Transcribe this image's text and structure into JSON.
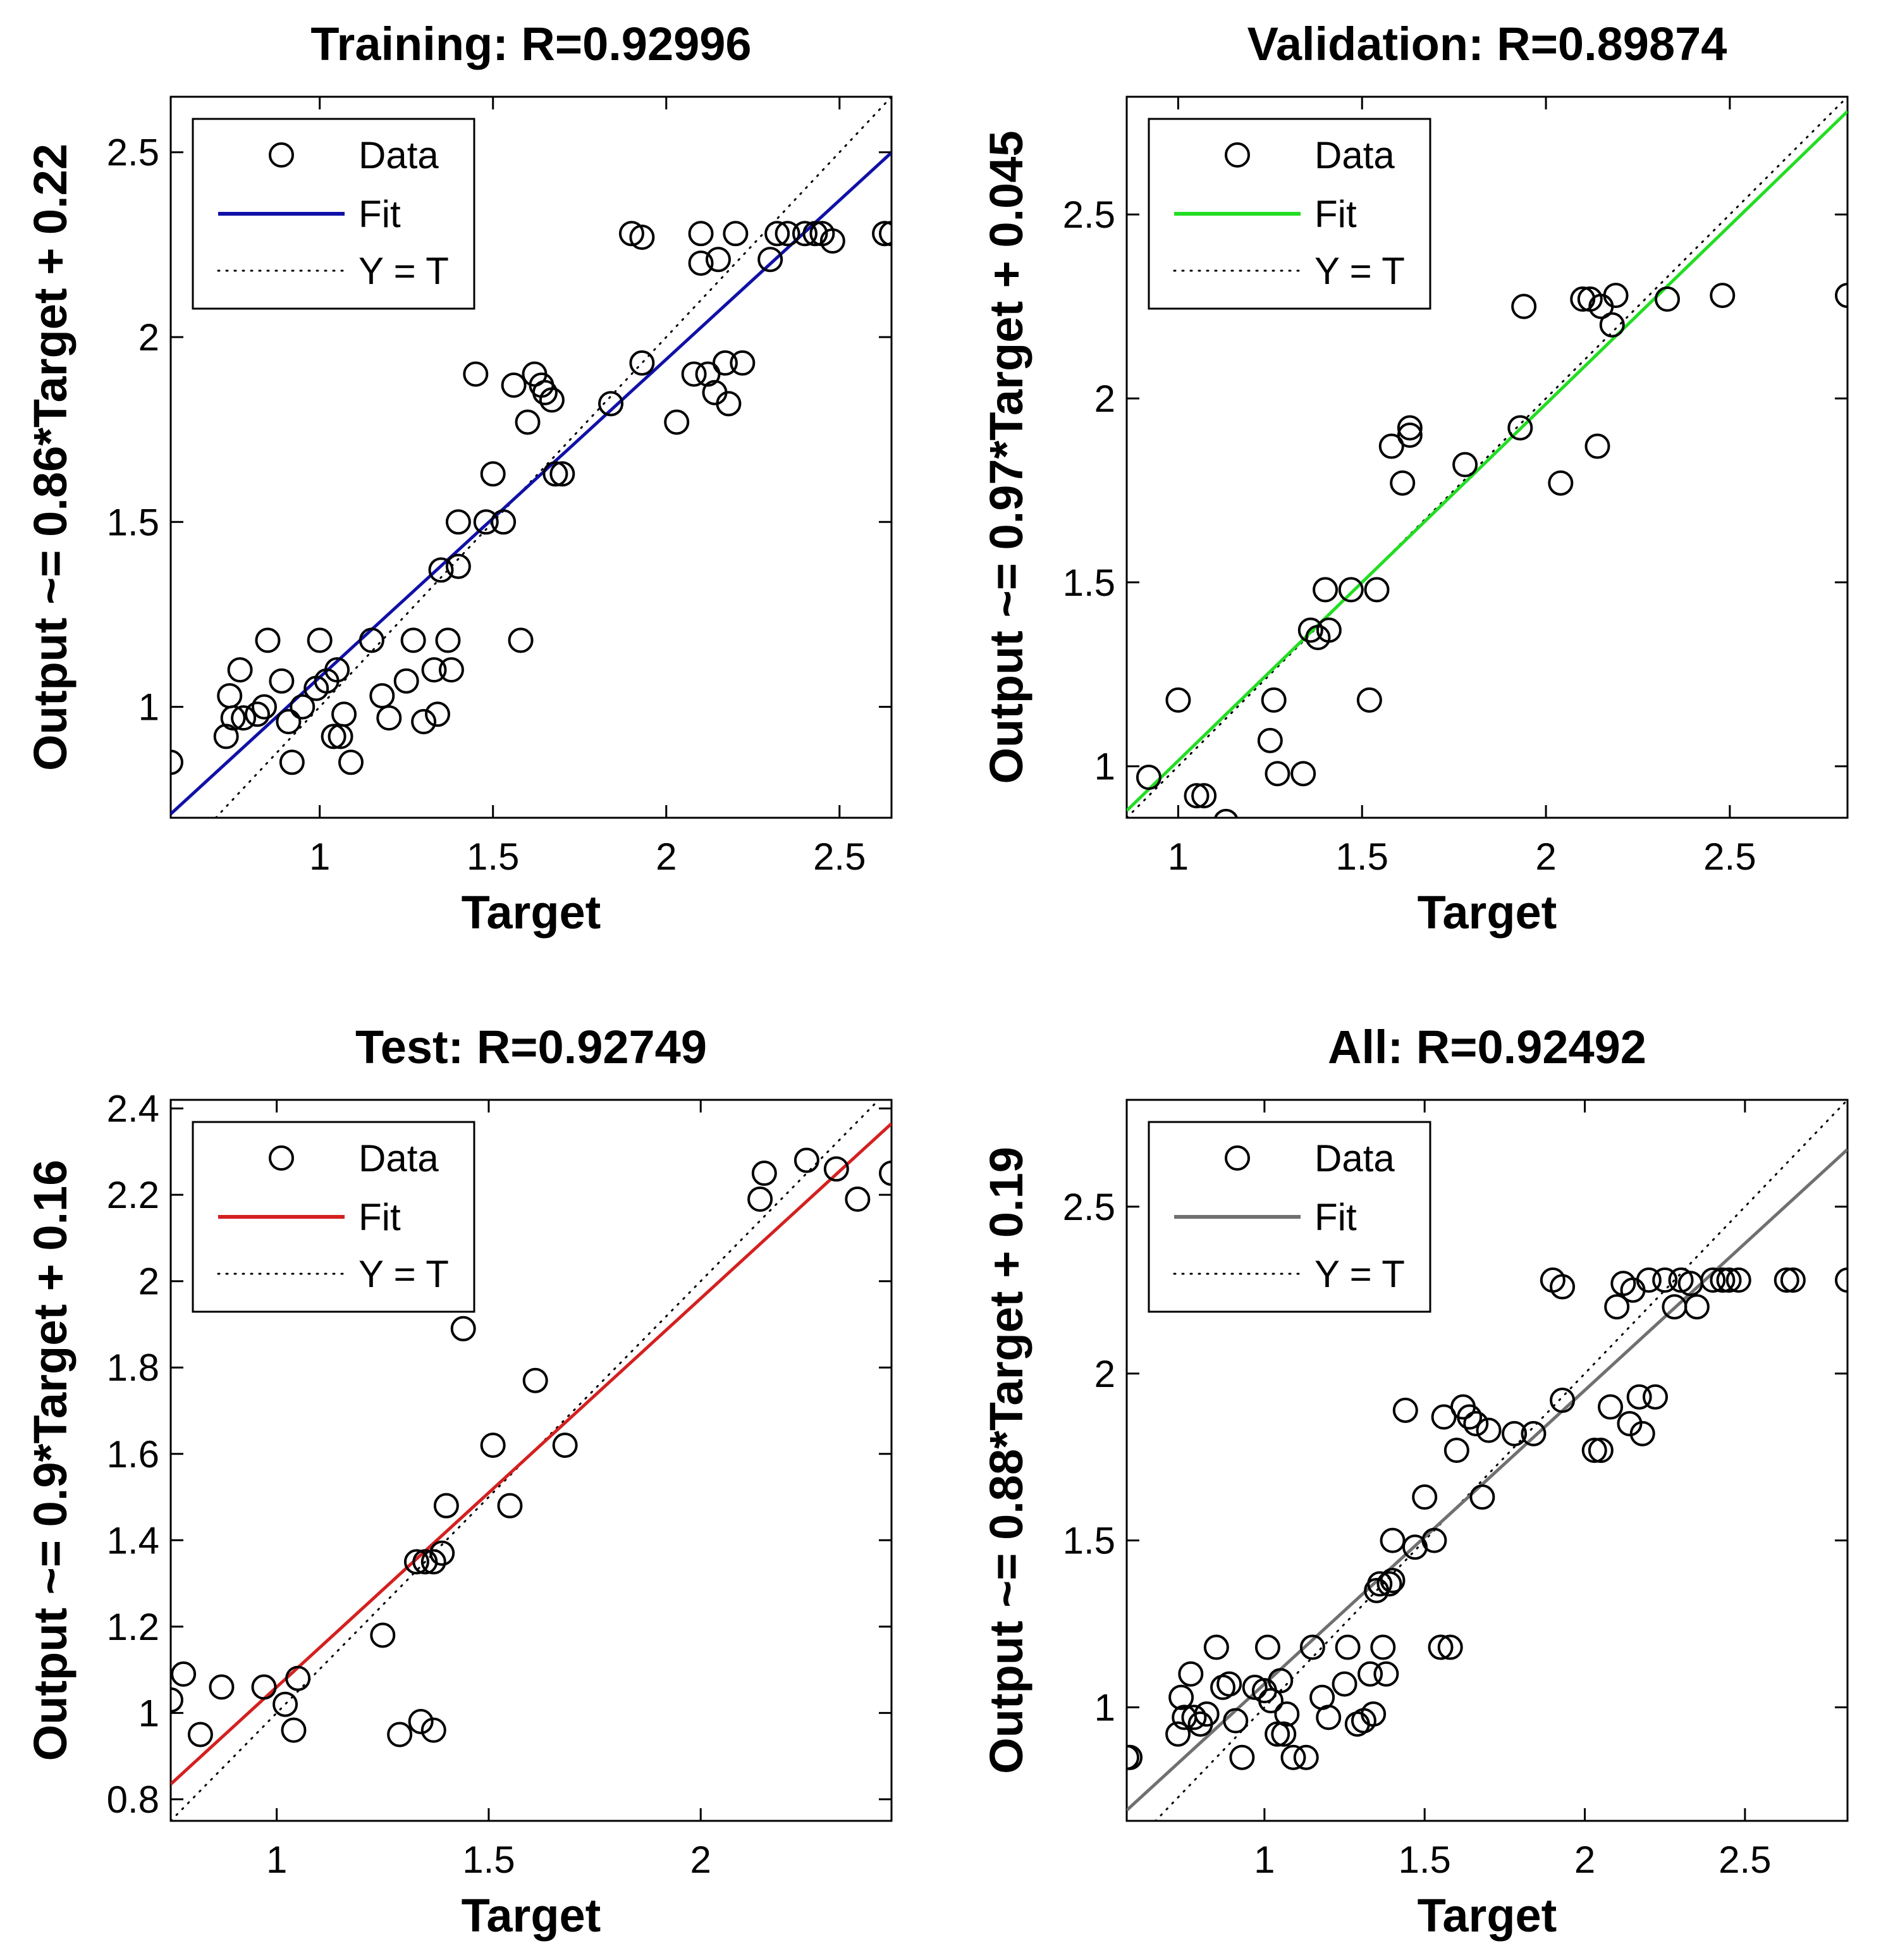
{
  "chart_data": [
    {
      "type": "scatter",
      "panel": "training",
      "title": "Training: R=0.92996",
      "xlabel": "Target",
      "ylabel": "Output ~= 0.86*Target + 0.22",
      "xlim": [
        0.57,
        2.65
      ],
      "ylim": [
        0.7,
        2.65
      ],
      "xticks": [
        1,
        1.5,
        2,
        2.5
      ],
      "xtick_labels": [
        "1",
        "1.5",
        "2",
        "2.5"
      ],
      "yticks": [
        1,
        1.5,
        2,
        2.5
      ],
      "ytick_labels": [
        "1",
        "1.5",
        "2",
        "2.5"
      ],
      "fit": {
        "slope": 0.86,
        "intercept": 0.22,
        "color": "#1010a8"
      },
      "legend": [
        "Data",
        "Fit",
        "Y = T"
      ],
      "legend_position": "top-left",
      "points": [
        [
          0.57,
          0.85
        ],
        [
          0.73,
          0.92
        ],
        [
          0.74,
          1.03
        ],
        [
          0.75,
          0.97
        ],
        [
          0.77,
          1.1
        ],
        [
          0.78,
          0.97
        ],
        [
          0.82,
          0.98
        ],
        [
          0.84,
          1.0
        ],
        [
          0.85,
          1.18
        ],
        [
          0.89,
          1.07
        ],
        [
          0.91,
          0.96
        ],
        [
          0.92,
          0.85
        ],
        [
          0.95,
          1.0
        ],
        [
          0.99,
          1.05
        ],
        [
          1.0,
          1.18
        ],
        [
          1.02,
          1.07
        ],
        [
          1.04,
          0.92
        ],
        [
          1.05,
          1.1
        ],
        [
          1.06,
          0.92
        ],
        [
          1.07,
          0.98
        ],
        [
          1.09,
          0.85
        ],
        [
          1.15,
          1.18
        ],
        [
          1.18,
          1.03
        ],
        [
          1.2,
          0.97
        ],
        [
          1.25,
          1.07
        ],
        [
          1.27,
          1.18
        ],
        [
          1.3,
          0.96
        ],
        [
          1.33,
          1.1
        ],
        [
          1.34,
          0.98
        ],
        [
          1.35,
          1.37
        ],
        [
          1.37,
          1.18
        ],
        [
          1.38,
          1.1
        ],
        [
          1.4,
          1.38
        ],
        [
          1.4,
          1.5
        ],
        [
          1.45,
          1.9
        ],
        [
          1.48,
          1.5
        ],
        [
          1.5,
          1.63
        ],
        [
          1.53,
          1.5
        ],
        [
          1.56,
          1.87
        ],
        [
          1.58,
          1.18
        ],
        [
          1.6,
          1.77
        ],
        [
          1.62,
          1.9
        ],
        [
          1.64,
          1.87
        ],
        [
          1.65,
          1.85
        ],
        [
          1.67,
          1.83
        ],
        [
          1.68,
          1.63
        ],
        [
          1.7,
          1.63
        ],
        [
          1.84,
          1.82
        ],
        [
          1.9,
          2.28
        ],
        [
          1.93,
          2.27
        ],
        [
          1.93,
          1.93
        ],
        [
          2.03,
          1.77
        ],
        [
          2.08,
          1.9
        ],
        [
          2.1,
          2.2
        ],
        [
          2.1,
          2.28
        ],
        [
          2.12,
          1.9
        ],
        [
          2.14,
          1.85
        ],
        [
          2.15,
          2.21
        ],
        [
          2.17,
          1.93
        ],
        [
          2.18,
          1.82
        ],
        [
          2.2,
          2.28
        ],
        [
          2.22,
          1.93
        ],
        [
          2.3,
          2.21
        ],
        [
          2.32,
          2.28
        ],
        [
          2.35,
          2.28
        ],
        [
          2.4,
          2.28
        ],
        [
          2.43,
          2.28
        ],
        [
          2.45,
          2.28
        ],
        [
          2.48,
          2.26
        ],
        [
          2.63,
          2.28
        ],
        [
          2.65,
          2.28
        ]
      ]
    },
    {
      "type": "scatter",
      "panel": "validation",
      "title": "Validation: R=0.89874",
      "xlabel": "Target",
      "ylabel": "Output ~= 0.97*Target + 0.045",
      "xlim": [
        0.86,
        2.82
      ],
      "ylim": [
        0.86,
        2.82
      ],
      "xticks": [
        1,
        1.5,
        2,
        2.5
      ],
      "xtick_labels": [
        "1",
        "1.5",
        "2",
        "2.5"
      ],
      "yticks": [
        1,
        1.5,
        2,
        2.5
      ],
      "ytick_labels": [
        "1",
        "1.5",
        "2",
        "2.5"
      ],
      "fit": {
        "slope": 0.97,
        "intercept": 0.045,
        "color": "#22dd22"
      },
      "legend": [
        "Data",
        "Fit",
        "Y = T"
      ],
      "legend_position": "top-left",
      "points": [
        [
          0.92,
          0.97
        ],
        [
          1.0,
          1.18
        ],
        [
          1.05,
          0.92
        ],
        [
          1.07,
          0.92
        ],
        [
          1.13,
          0.85
        ],
        [
          1.25,
          1.07
        ],
        [
          1.26,
          1.18
        ],
        [
          1.27,
          0.98
        ],
        [
          1.34,
          0.98
        ],
        [
          1.36,
          1.37
        ],
        [
          1.38,
          1.35
        ],
        [
          1.4,
          1.48
        ],
        [
          1.41,
          1.37
        ],
        [
          1.47,
          1.48
        ],
        [
          1.52,
          1.18
        ],
        [
          1.54,
          1.48
        ],
        [
          1.58,
          1.87
        ],
        [
          1.61,
          1.77
        ],
        [
          1.63,
          1.9
        ],
        [
          1.63,
          1.92
        ],
        [
          1.78,
          1.82
        ],
        [
          1.93,
          1.92
        ],
        [
          1.94,
          2.25
        ],
        [
          2.04,
          1.77
        ],
        [
          2.1,
          2.27
        ],
        [
          2.12,
          2.27
        ],
        [
          2.14,
          1.87
        ],
        [
          2.15,
          2.25
        ],
        [
          2.18,
          2.2
        ],
        [
          2.19,
          2.28
        ],
        [
          2.33,
          2.27
        ],
        [
          2.48,
          2.28
        ],
        [
          2.82,
          2.28
        ]
      ]
    },
    {
      "type": "scatter",
      "panel": "test",
      "title": "Test: R=0.92749",
      "xlabel": "Target",
      "ylabel": "Output ~= 0.9*Target + 0.16",
      "xlim": [
        0.75,
        2.45
      ],
      "ylim": [
        0.75,
        2.42
      ],
      "xticks": [
        1,
        1.5,
        2
      ],
      "xtick_labels": [
        "1",
        "1.5",
        "2"
      ],
      "yticks": [
        0.8,
        1.0,
        1.2,
        1.4,
        1.6,
        1.8,
        2.0,
        2.2,
        2.4
      ],
      "ytick_labels": [
        "0.8",
        "1",
        "1.2",
        "1.4",
        "1.6",
        "1.8",
        "2",
        "2.2",
        "2.4"
      ],
      "fit": {
        "slope": 0.9,
        "intercept": 0.16,
        "color": "#d42020"
      },
      "legend": [
        "Data",
        "Fit",
        "Y = T"
      ],
      "legend_position": "top-left",
      "points": [
        [
          0.75,
          1.03
        ],
        [
          0.78,
          1.09
        ],
        [
          0.82,
          0.95
        ],
        [
          0.87,
          1.06
        ],
        [
          0.97,
          1.06
        ],
        [
          1.02,
          1.02
        ],
        [
          1.04,
          0.96
        ],
        [
          1.05,
          1.08
        ],
        [
          1.25,
          1.18
        ],
        [
          1.29,
          0.95
        ],
        [
          1.33,
          1.35
        ],
        [
          1.34,
          0.98
        ],
        [
          1.35,
          1.35
        ],
        [
          1.37,
          0.96
        ],
        [
          1.37,
          1.35
        ],
        [
          1.39,
          1.37
        ],
        [
          1.4,
          1.48
        ],
        [
          1.44,
          1.89
        ],
        [
          1.51,
          1.62
        ],
        [
          1.55,
          1.48
        ],
        [
          1.61,
          1.77
        ],
        [
          1.68,
          1.62
        ],
        [
          2.14,
          2.19
        ],
        [
          2.15,
          2.25
        ],
        [
          2.25,
          2.28
        ],
        [
          2.32,
          2.26
        ],
        [
          2.37,
          2.19
        ],
        [
          2.45,
          2.25
        ]
      ]
    },
    {
      "type": "scatter",
      "panel": "all",
      "title": "All: R=0.92492",
      "xlabel": "Target",
      "ylabel": "Output ~= 0.88*Target + 0.19",
      "xlim": [
        0.57,
        2.82
      ],
      "ylim": [
        0.66,
        2.82
      ],
      "xticks": [
        1,
        1.5,
        2,
        2.5
      ],
      "xtick_labels": [
        "1",
        "1.5",
        "2",
        "2.5"
      ],
      "yticks": [
        1,
        1.5,
        2,
        2.5
      ],
      "ytick_labels": [
        "1",
        "1.5",
        "2",
        "2.5"
      ],
      "fit": {
        "slope": 0.88,
        "intercept": 0.19,
        "color": "#707070"
      },
      "legend": [
        "Data",
        "Fit",
        "Y = T"
      ],
      "legend_position": "top-left",
      "points": [
        [
          0.57,
          0.85
        ],
        [
          0.58,
          0.85
        ],
        [
          0.73,
          0.92
        ],
        [
          0.74,
          1.03
        ],
        [
          0.75,
          0.97
        ],
        [
          0.77,
          1.1
        ],
        [
          0.78,
          0.97
        ],
        [
          0.8,
          0.95
        ],
        [
          0.82,
          0.98
        ],
        [
          0.85,
          1.18
        ],
        [
          0.87,
          1.06
        ],
        [
          0.89,
          1.07
        ],
        [
          0.91,
          0.96
        ],
        [
          0.93,
          0.85
        ],
        [
          0.97,
          1.06
        ],
        [
          1.0,
          1.05
        ],
        [
          1.01,
          1.18
        ],
        [
          1.02,
          1.02
        ],
        [
          1.04,
          0.92
        ],
        [
          1.05,
          1.08
        ],
        [
          1.06,
          0.92
        ],
        [
          1.07,
          0.98
        ],
        [
          1.09,
          0.85
        ],
        [
          1.13,
          0.85
        ],
        [
          1.15,
          1.18
        ],
        [
          1.18,
          1.03
        ],
        [
          1.2,
          0.97
        ],
        [
          1.25,
          1.07
        ],
        [
          1.26,
          1.18
        ],
        [
          1.29,
          0.95
        ],
        [
          1.31,
          0.96
        ],
        [
          1.33,
          1.1
        ],
        [
          1.34,
          0.98
        ],
        [
          1.35,
          1.35
        ],
        [
          1.36,
          1.37
        ],
        [
          1.37,
          1.18
        ],
        [
          1.38,
          1.1
        ],
        [
          1.39,
          1.37
        ],
        [
          1.4,
          1.38
        ],
        [
          1.4,
          1.5
        ],
        [
          1.44,
          1.89
        ],
        [
          1.47,
          1.48
        ],
        [
          1.5,
          1.63
        ],
        [
          1.53,
          1.5
        ],
        [
          1.55,
          1.18
        ],
        [
          1.56,
          1.87
        ],
        [
          1.58,
          1.18
        ],
        [
          1.6,
          1.77
        ],
        [
          1.62,
          1.9
        ],
        [
          1.64,
          1.87
        ],
        [
          1.66,
          1.85
        ],
        [
          1.68,
          1.63
        ],
        [
          1.7,
          1.83
        ],
        [
          1.78,
          1.82
        ],
        [
          1.84,
          1.82
        ],
        [
          1.9,
          2.28
        ],
        [
          1.93,
          2.26
        ],
        [
          1.93,
          1.92
        ],
        [
          2.03,
          1.77
        ],
        [
          2.05,
          1.77
        ],
        [
          2.08,
          1.9
        ],
        [
          2.1,
          2.2
        ],
        [
          2.12,
          2.27
        ],
        [
          2.14,
          1.85
        ],
        [
          2.15,
          2.25
        ],
        [
          2.17,
          1.93
        ],
        [
          2.18,
          1.82
        ],
        [
          2.2,
          2.28
        ],
        [
          2.22,
          1.93
        ],
        [
          2.25,
          2.28
        ],
        [
          2.28,
          2.2
        ],
        [
          2.3,
          2.28
        ],
        [
          2.33,
          2.27
        ],
        [
          2.35,
          2.2
        ],
        [
          2.4,
          2.28
        ],
        [
          2.43,
          2.28
        ],
        [
          2.45,
          2.28
        ],
        [
          2.48,
          2.28
        ],
        [
          2.63,
          2.28
        ],
        [
          2.65,
          2.28
        ],
        [
          2.82,
          2.28
        ]
      ]
    }
  ]
}
